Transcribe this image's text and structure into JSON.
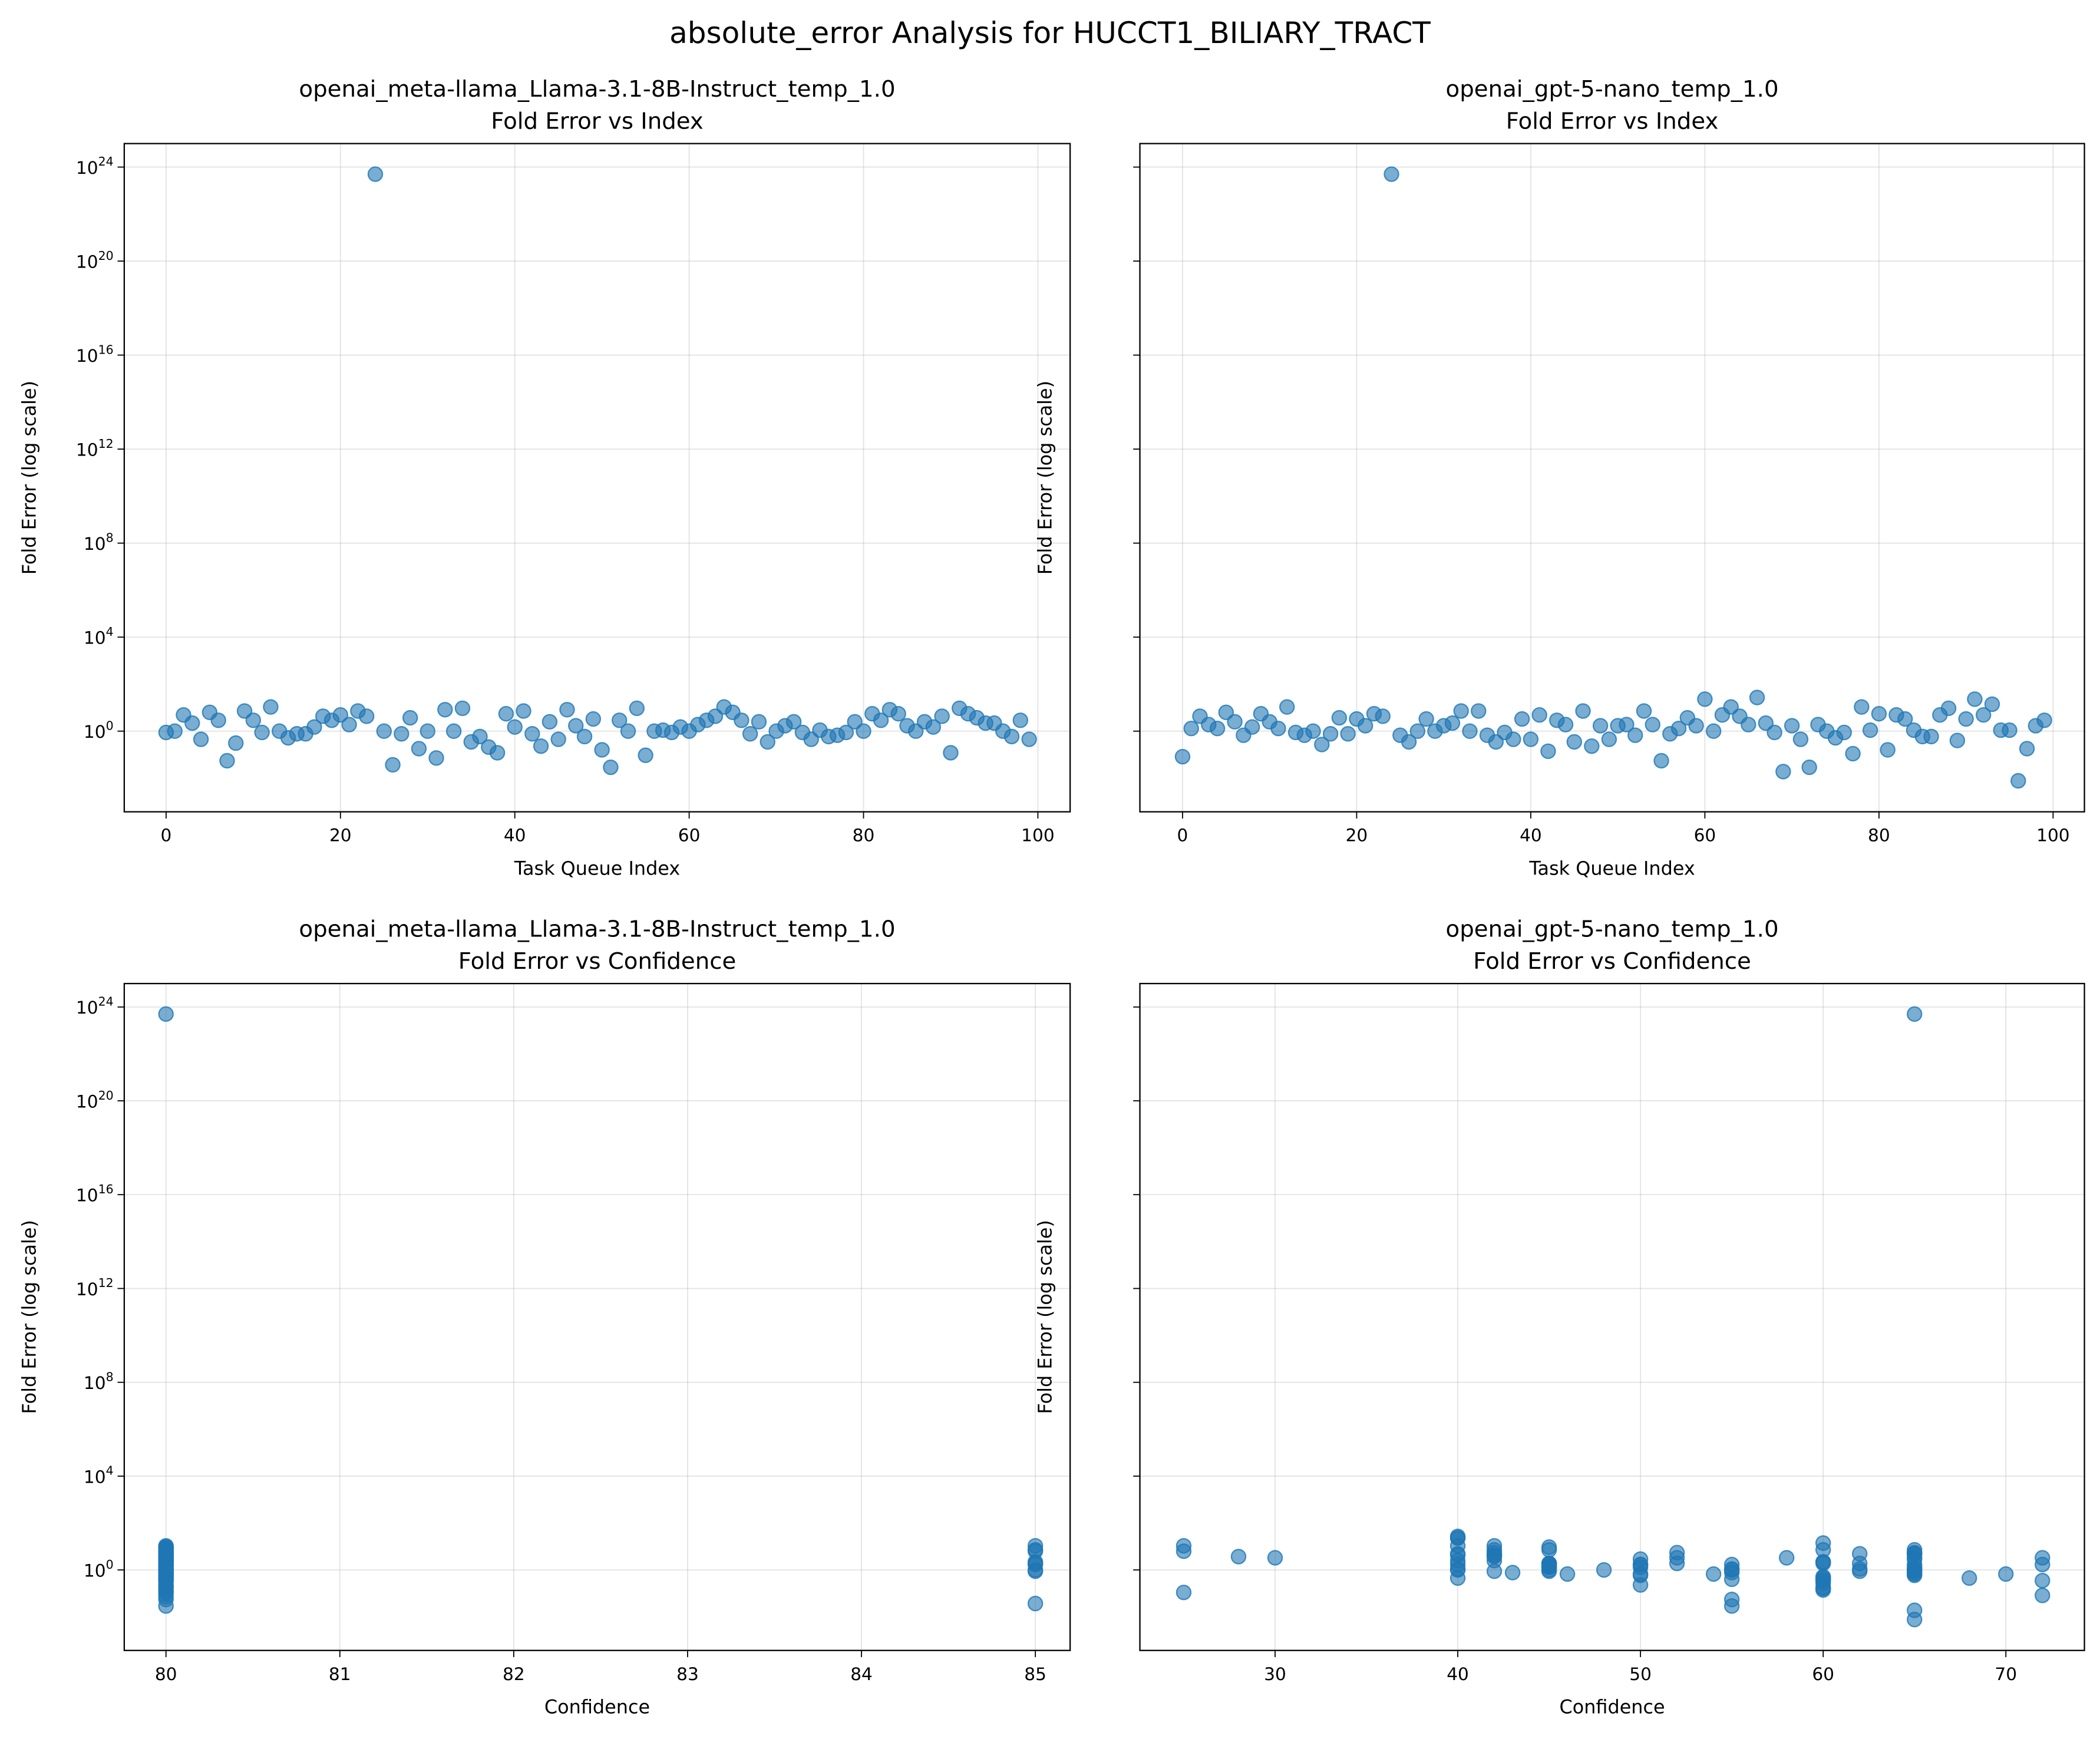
{
  "title": "absolute_error Analysis for HUCCT1_BILIARY_TRACT",
  "chart_data": [
    {
      "type": "scatter",
      "title": "openai_meta-llama_Llama-3.1-8B-Instruct_temp_1.0",
      "subtitle": "Fold Error vs Index",
      "x_label": "Task Queue Index",
      "y_label": "Fold Error (log scale)",
      "color": "#1f77b4",
      "log_y": true,
      "grid": true,
      "xlim": [
        -4.8,
        103.7
      ],
      "xticks": [
        0,
        20,
        40,
        60,
        80,
        100
      ],
      "ylim": [
        0.00037,
        1e+25
      ],
      "yticks": [
        {
          "value": 1,
          "label": "10^0"
        },
        {
          "value": 10000,
          "label": "10^4"
        },
        {
          "value": 100000000.0,
          "label": "10^8"
        },
        {
          "value": 1000000000000.0,
          "label": "10^12"
        },
        {
          "value": 1e+16,
          "label": "10^16"
        },
        {
          "value": 1e+20,
          "label": "10^20"
        },
        {
          "value": 1e+24,
          "label": "10^24"
        }
      ],
      "x": [
        0,
        1,
        2,
        3,
        4,
        5,
        6,
        7,
        8,
        9,
        10,
        11,
        12,
        13,
        14,
        15,
        16,
        17,
        18,
        19,
        20,
        21,
        22,
        23,
        24,
        25,
        26,
        27,
        28,
        29,
        30,
        31,
        32,
        33,
        34,
        35,
        36,
        37,
        38,
        39,
        40,
        41,
        42,
        43,
        44,
        45,
        46,
        47,
        48,
        49,
        50,
        51,
        52,
        53,
        54,
        55,
        56,
        57,
        58,
        59,
        60,
        61,
        62,
        63,
        64,
        65,
        66,
        67,
        68,
        69,
        70,
        71,
        72,
        73,
        74,
        75,
        76,
        77,
        78,
        79,
        80,
        81,
        82,
        83,
        84,
        85,
        86,
        87,
        88,
        89,
        90,
        91,
        92,
        93,
        94,
        95,
        96,
        97,
        98,
        99
      ],
      "values": [
        0.88,
        1,
        4.9,
        2.2,
        0.45,
        6.3,
        2.9,
        0.055,
        0.31,
        7.2,
        2.9,
        0.88,
        10.7,
        1,
        0.52,
        0.77,
        0.77,
        1.5,
        4.3,
        2.9,
        4.9,
        1.9,
        7.2,
        4.3,
        5e+23,
        1,
        0.037,
        0.77,
        3.7,
        0.18,
        1,
        0.072,
        8.2,
        1,
        9.4,
        0.35,
        0.59,
        0.21,
        0.12,
        5.5,
        1.5,
        7.2,
        0.77,
        0.23,
        2.5,
        0.45,
        8.2,
        1.7,
        0.59,
        3.3,
        0.16,
        0.029,
        2.9,
        1,
        9.4,
        0.094,
        1,
        1.1,
        0.88,
        1.5,
        1,
        1.9,
        2.9,
        4.3,
        10.7,
        6.3,
        2.9,
        0.77,
        2.5,
        0.35,
        1,
        1.7,
        2.5,
        0.88,
        0.45,
        1.1,
        0.59,
        0.67,
        0.88,
        2.5,
        1,
        5.5,
        2.9,
        8.2,
        5.5,
        1.7,
        1,
        2.5,
        1.5,
        4.3,
        0.12,
        9.4,
        5.5,
        3.7,
        2.2,
        2.2,
        1,
        0.59,
        2.9,
        0.45
      ]
    },
    {
      "type": "scatter",
      "title": "openai_gpt-5-nano_temp_1.0",
      "subtitle": "Fold Error vs Index",
      "x_label": "Task Queue Index",
      "y_label": "Fold Error (log scale)",
      "color": "#1f77b4",
      "log_y": true,
      "grid": true,
      "xlim": [
        -4.9,
        103.6
      ],
      "xticks": [
        0,
        20,
        40,
        60,
        80,
        100
      ],
      "ylim": [
        0.00037,
        1e+25
      ],
      "yticks": [
        1,
        10000,
        100000000.0,
        1000000000000.0,
        1e+16,
        1e+20,
        1e+24
      ],
      "ytick_labels": false,
      "x": [
        0,
        1,
        2,
        3,
        4,
        5,
        6,
        7,
        8,
        9,
        10,
        11,
        12,
        13,
        14,
        15,
        16,
        17,
        18,
        19,
        20,
        21,
        22,
        23,
        24,
        25,
        26,
        27,
        28,
        29,
        30,
        31,
        32,
        33,
        34,
        35,
        36,
        37,
        38,
        39,
        40,
        41,
        42,
        43,
        44,
        45,
        46,
        47,
        48,
        49,
        50,
        51,
        52,
        53,
        54,
        55,
        56,
        57,
        58,
        59,
        60,
        61,
        62,
        63,
        64,
        65,
        66,
        67,
        68,
        69,
        70,
        71,
        72,
        73,
        74,
        75,
        76,
        77,
        78,
        79,
        80,
        81,
        82,
        83,
        84,
        85,
        86,
        87,
        88,
        89,
        90,
        91,
        92,
        93,
        94,
        95,
        96,
        97,
        98,
        99
      ],
      "values": [
        0.082,
        1.3,
        4.3,
        1.9,
        1.3,
        6.3,
        2.5,
        0.67,
        1.5,
        5.5,
        2.5,
        1.3,
        10.7,
        0.88,
        0.67,
        1,
        0.27,
        0.77,
        3.7,
        0.77,
        3.3,
        1.7,
        5.5,
        4.3,
        5e+23,
        0.67,
        0.35,
        1,
        3.3,
        1,
        1.7,
        2.2,
        7.2,
        1,
        7.2,
        0.67,
        0.35,
        0.88,
        0.45,
        3.3,
        0.45,
        4.9,
        0.14,
        2.9,
        1.9,
        0.35,
        7.2,
        0.23,
        1.7,
        0.45,
        1.7,
        1.9,
        0.67,
        7.2,
        1.9,
        0.055,
        0.77,
        1.3,
        3.7,
        1.7,
        23,
        1,
        4.9,
        10.7,
        4.3,
        1.9,
        27,
        2.2,
        0.88,
        0.019,
        1.7,
        0.45,
        0.029,
        1.9,
        1,
        0.52,
        0.88,
        0.11,
        10.7,
        1.1,
        5.5,
        0.16,
        4.9,
        3.3,
        1.1,
        0.59,
        0.59,
        4.9,
        9.4,
        0.4,
        3.3,
        23,
        4.9,
        14,
        1.1,
        1.1,
        0.0077,
        0.18,
        1.7,
        2.9
      ]
    },
    {
      "type": "scatter",
      "title": "openai_meta-llama_Llama-3.1-8B-Instruct_temp_1.0",
      "subtitle": "Fold Error vs Confidence",
      "x_label": "Confidence",
      "y_label": "Fold Error (log scale)",
      "color": "#1f77b4",
      "log_y": true,
      "grid": true,
      "xlim": [
        79.76,
        85.2
      ],
      "xticks": [
        80,
        81,
        82,
        83,
        84,
        85
      ],
      "ylim": [
        0.00037,
        1e+25
      ],
      "yticks": [
        {
          "value": 1,
          "label": "10^0"
        },
        {
          "value": 10000,
          "label": "10^4"
        },
        {
          "value": 100000000.0,
          "label": "10^8"
        },
        {
          "value": 1000000000000.0,
          "label": "10^12"
        },
        {
          "value": 1e+16,
          "label": "10^16"
        },
        {
          "value": 1e+20,
          "label": "10^20"
        },
        {
          "value": 1e+24,
          "label": "10^24"
        }
      ],
      "x": [
        80,
        80,
        80,
        85,
        80,
        85,
        80,
        80,
        80,
        85,
        80,
        80,
        85,
        85,
        80,
        80,
        80,
        80,
        80,
        80,
        80,
        85,
        80,
        80,
        80,
        80,
        85,
        80,
        80,
        80,
        80,
        80,
        80,
        80,
        80,
        80,
        80,
        80,
        80,
        80,
        80,
        80,
        80,
        80,
        80,
        80,
        80,
        85,
        80,
        80,
        80,
        80,
        80,
        80,
        80,
        80,
        80,
        80,
        80,
        80,
        80,
        80,
        80,
        80,
        80,
        80,
        80,
        80,
        80,
        80,
        80,
        80,
        80,
        85,
        80,
        80,
        80,
        80,
        80,
        80,
        80,
        80,
        80,
        80,
        80,
        80,
        80,
        80,
        80,
        80,
        80,
        80,
        80,
        80,
        80,
        80,
        80,
        80,
        80,
        80
      ],
      "values": [
        0.88,
        1,
        4.9,
        2.2,
        0.45,
        6.3,
        2.9,
        0.055,
        0.31,
        7.2,
        2.9,
        0.88,
        10.7,
        1,
        0.52,
        0.77,
        0.77,
        1.5,
        4.3,
        2.9,
        4.9,
        1.9,
        7.2,
        4.3,
        5e+23,
        1,
        0.037,
        0.77,
        3.7,
        0.18,
        1,
        0.072,
        8.2,
        1,
        9.4,
        0.35,
        0.59,
        0.21,
        0.12,
        5.5,
        1.5,
        7.2,
        0.77,
        0.23,
        2.5,
        0.45,
        8.2,
        1.7,
        0.59,
        3.3,
        0.16,
        0.029,
        2.9,
        1,
        9.4,
        0.094,
        1,
        1.1,
        0.88,
        1.5,
        1,
        1.9,
        2.9,
        4.3,
        10.7,
        6.3,
        2.9,
        0.77,
        2.5,
        0.35,
        1,
        1.7,
        2.5,
        0.88,
        0.45,
        1.1,
        0.59,
        0.67,
        0.88,
        2.5,
        1,
        5.5,
        2.9,
        8.2,
        5.5,
        1.7,
        1,
        2.5,
        1.5,
        4.3,
        0.12,
        9.4,
        5.5,
        3.7,
        2.2,
        2.2,
        1,
        0.59,
        2.9,
        0.45
      ]
    },
    {
      "type": "scatter",
      "title": "openai_gpt-5-nano_temp_1.0",
      "subtitle": "Fold Error vs Confidence",
      "x_label": "Confidence",
      "y_label": "Fold Error (log scale)",
      "color": "#1f77b4",
      "log_y": true,
      "grid": true,
      "xlim": [
        22.6,
        74.3
      ],
      "xticks": [
        30,
        40,
        50,
        60,
        70
      ],
      "ylim": [
        0.00037,
        1e+25
      ],
      "yticks": [
        1,
        10000,
        100000000.0,
        1000000000000.0,
        1e+16,
        1e+20,
        1e+24
      ],
      "ytick_labels": false,
      "x": [
        72,
        45,
        42,
        60,
        45,
        25,
        40,
        50,
        45,
        52,
        42,
        65,
        40,
        62,
        65,
        48,
        60,
        55,
        28,
        43,
        30,
        50,
        65,
        42,
        65,
        46,
        60,
        45,
        58,
        40,
        55,
        60,
        45,
        65,
        42,
        54,
        72,
        65,
        60,
        72,
        40,
        62,
        60,
        50,
        45,
        60,
        65,
        50,
        40,
        68,
        45,
        62,
        70,
        60,
        52,
        55,
        65,
        50,
        42,
        65,
        40,
        55,
        65,
        42,
        40,
        45,
        40,
        60,
        45,
        65,
        50,
        60,
        55,
        45,
        65,
        60,
        42,
        25,
        25,
        65,
        42,
        60,
        65,
        65,
        62,
        65,
        50,
        40,
        45,
        55,
        52,
        40,
        65,
        60,
        40,
        55,
        65,
        60,
        72,
        65
      ],
      "values": [
        0.082,
        1.3,
        4.3,
        1.9,
        1.3,
        6.3,
        2.5,
        0.67,
        1.5,
        5.5,
        2.5,
        1.3,
        10.7,
        0.88,
        0.67,
        1,
        0.27,
        0.77,
        3.7,
        0.77,
        3.3,
        1.7,
        5.5,
        4.3,
        5e+23,
        0.67,
        0.35,
        1,
        3.3,
        1,
        1.7,
        2.2,
        7.2,
        1,
        7.2,
        0.67,
        0.35,
        0.88,
        0.45,
        3.3,
        0.45,
        4.9,
        0.14,
        2.9,
        1.9,
        0.35,
        7.2,
        0.23,
        1.7,
        0.45,
        1.7,
        1.9,
        0.67,
        7.2,
        1.9,
        0.055,
        0.77,
        1.3,
        3.7,
        1.7,
        23,
        1,
        4.9,
        10.7,
        4.3,
        1.9,
        27,
        2.2,
        0.88,
        0.019,
        1.7,
        0.45,
        0.029,
        1.9,
        1,
        0.52,
        0.88,
        0.11,
        10.7,
        1.1,
        5.5,
        0.16,
        4.9,
        3.3,
        1.1,
        0.59,
        0.59,
        4.9,
        9.4,
        0.4,
        3.3,
        23,
        4.9,
        14,
        1.1,
        1.1,
        0.0077,
        0.18,
        1.7,
        2.9
      ]
    }
  ]
}
